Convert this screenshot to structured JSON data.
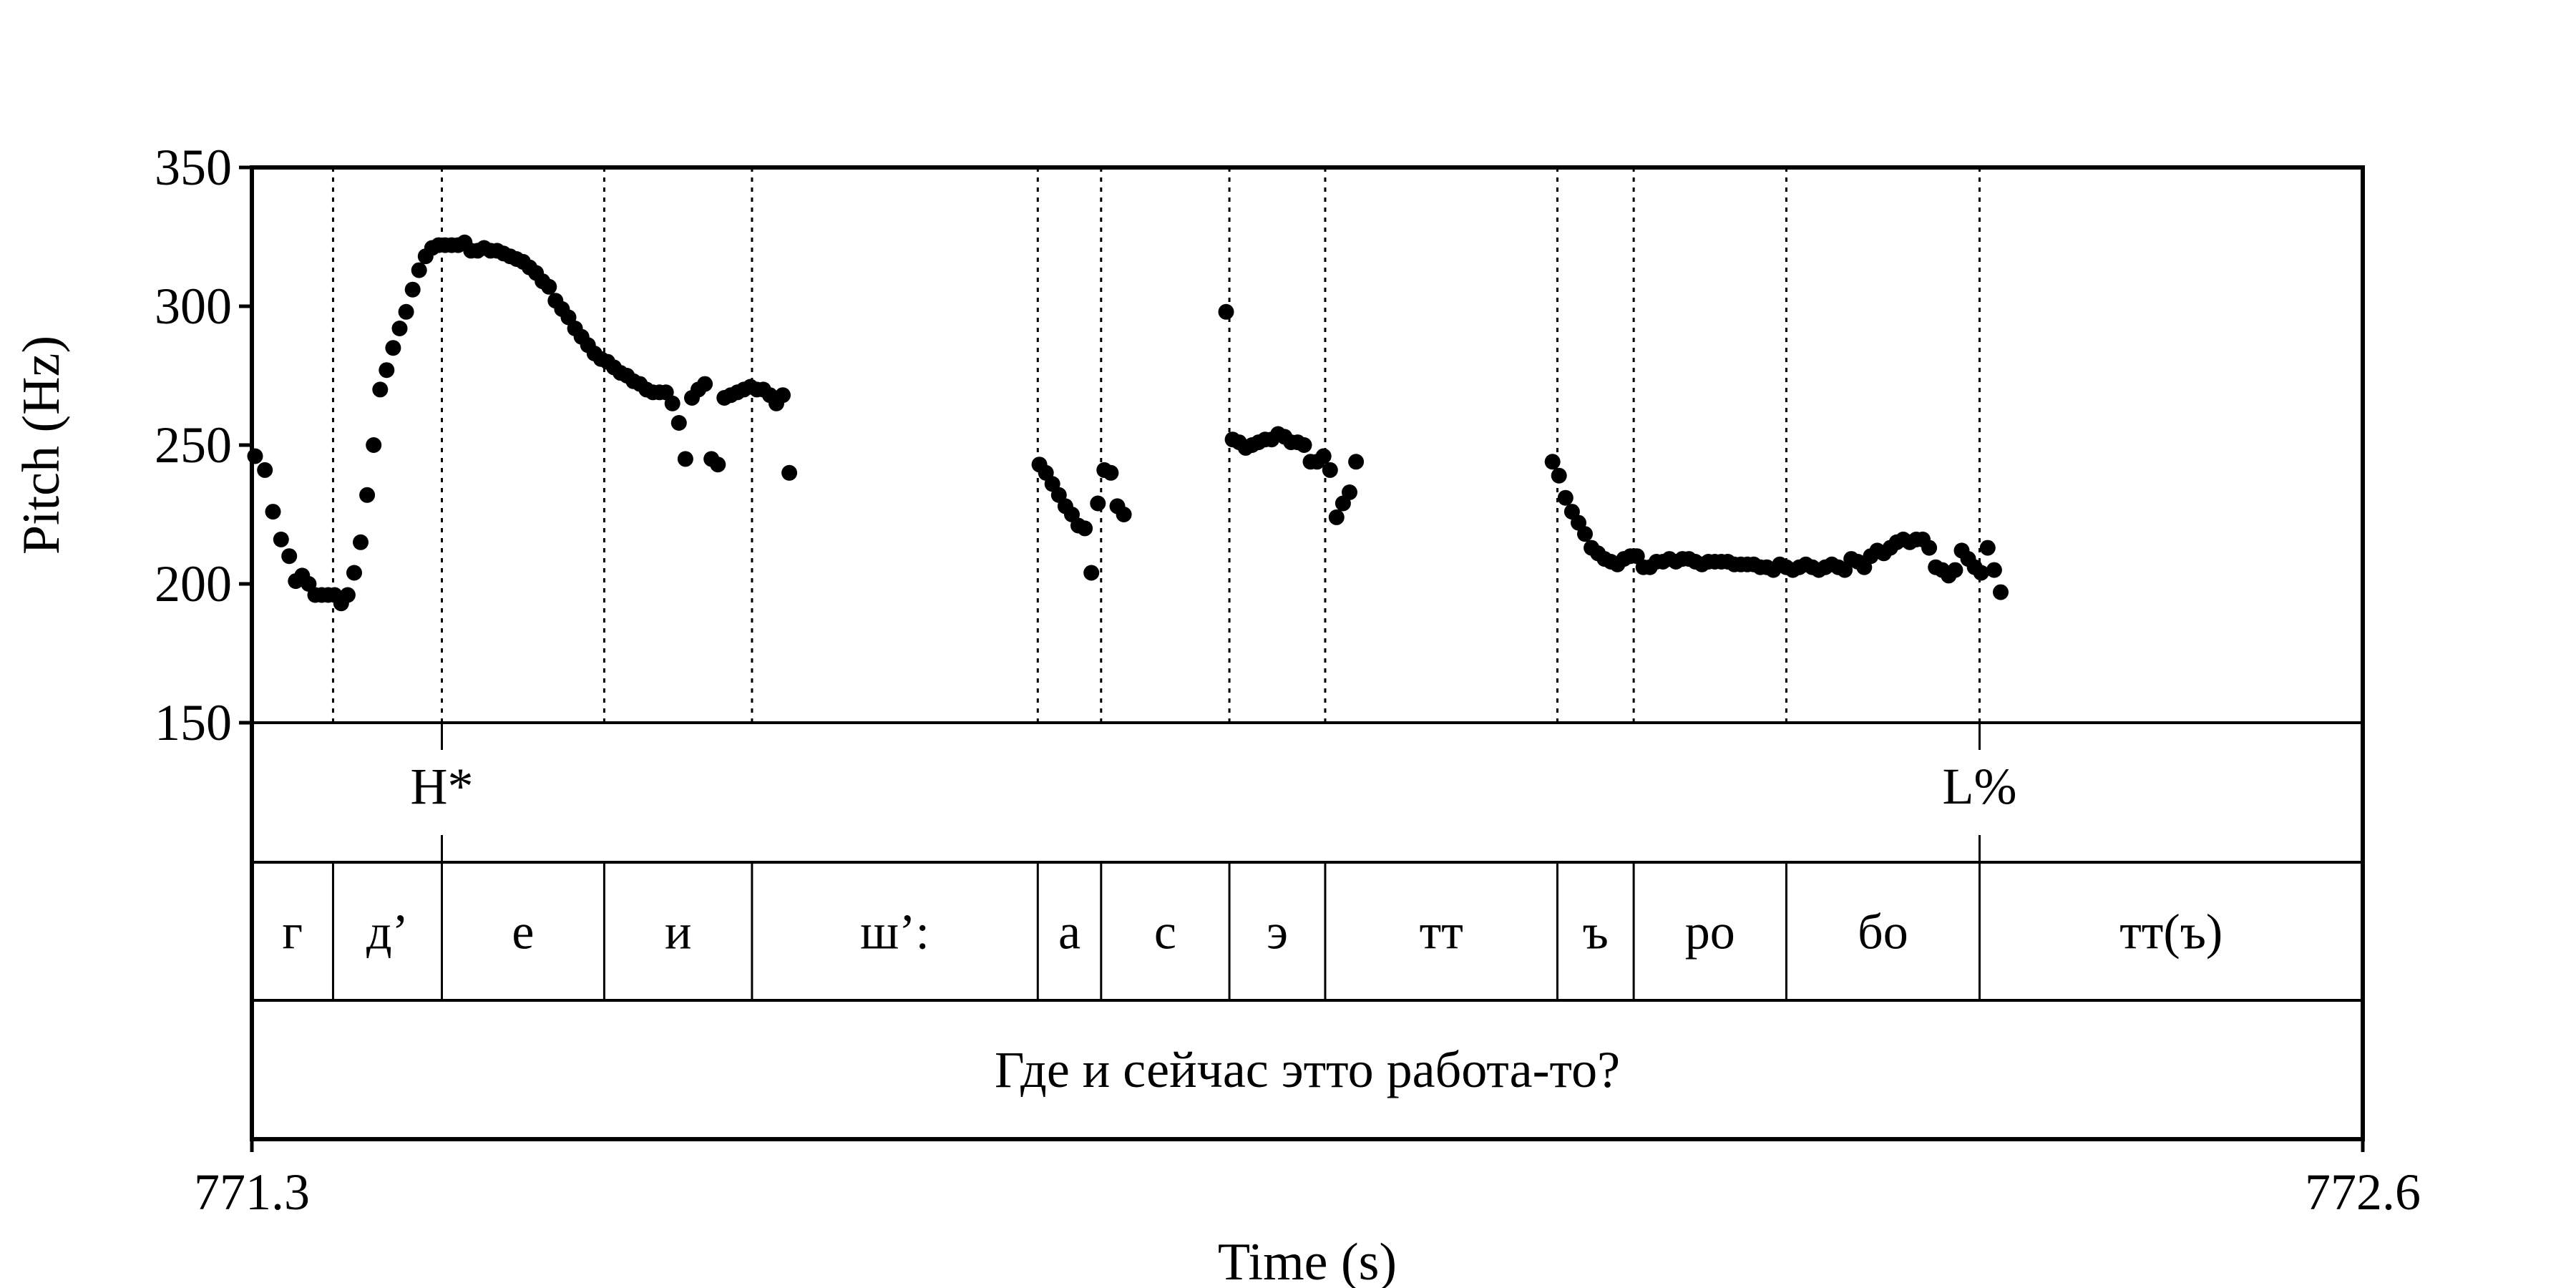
{
  "chart_data": {
    "type": "scatter",
    "title": "",
    "xlabel": "Time (s)",
    "ylabel": "Pitch (Hz)",
    "xlim": [
      771.3,
      772.6
    ],
    "ylim": [
      150,
      350
    ],
    "xtick_labels": [
      "771.3",
      "772.6"
    ],
    "ytick_labels": [
      "150",
      "200",
      "250",
      "300",
      "350"
    ],
    "yticks": [
      150,
      200,
      250,
      300,
      350
    ],
    "grid": false,
    "point_color": "#000000",
    "series": [
      {
        "values": [
          [
            771.302,
            246
          ],
          [
            771.308,
            241
          ],
          [
            771.313,
            226
          ],
          [
            771.318,
            216
          ],
          [
            771.323,
            210
          ],
          [
            771.327,
            201
          ],
          [
            771.331,
            203
          ],
          [
            771.335,
            200
          ],
          [
            771.339,
            196
          ],
          [
            771.343,
            196
          ],
          [
            771.347,
            196
          ],
          [
            771.351,
            196
          ],
          [
            771.355,
            193
          ],
          [
            771.359,
            196
          ],
          [
            771.363,
            204
          ],
          [
            771.367,
            215
          ],
          [
            771.371,
            232
          ],
          [
            771.375,
            250
          ],
          [
            771.379,
            270
          ],
          [
            771.383,
            277
          ],
          [
            771.387,
            285
          ],
          [
            771.391,
            292
          ],
          [
            771.395,
            298
          ],
          [
            771.399,
            306
          ],
          [
            771.403,
            313
          ],
          [
            771.407,
            318
          ],
          [
            771.411,
            321
          ],
          [
            771.415,
            322
          ],
          [
            771.419,
            322
          ],
          [
            771.423,
            322
          ],
          [
            771.427,
            322
          ],
          [
            771.431,
            323
          ],
          [
            771.435,
            320
          ],
          [
            771.439,
            320
          ],
          [
            771.443,
            321
          ],
          [
            771.447,
            320
          ],
          [
            771.451,
            320
          ],
          [
            771.455,
            319
          ],
          [
            771.459,
            318
          ],
          [
            771.463,
            317
          ],
          [
            771.467,
            316
          ],
          [
            771.471,
            314
          ],
          [
            771.475,
            312
          ],
          [
            771.479,
            309
          ],
          [
            771.483,
            307
          ],
          [
            771.487,
            302
          ],
          [
            771.491,
            299
          ],
          [
            771.495,
            296
          ],
          [
            771.499,
            292
          ],
          [
            771.503,
            289
          ],
          [
            771.507,
            286
          ],
          [
            771.511,
            283
          ],
          [
            771.515,
            281
          ],
          [
            771.519,
            280
          ],
          [
            771.523,
            278
          ],
          [
            771.527,
            276
          ],
          [
            771.531,
            275
          ],
          [
            771.535,
            273
          ],
          [
            771.539,
            272
          ],
          [
            771.543,
            270
          ],
          [
            771.547,
            269
          ],
          [
            771.551,
            269
          ],
          [
            771.555,
            269
          ],
          [
            771.559,
            265
          ],
          [
            771.563,
            258
          ],
          [
            771.567,
            245
          ],
          [
            771.571,
            267
          ],
          [
            771.575,
            270
          ],
          [
            771.579,
            272
          ],
          [
            771.583,
            245
          ],
          [
            771.587,
            243
          ],
          [
            771.591,
            267
          ],
          [
            771.595,
            268
          ],
          [
            771.599,
            269
          ],
          [
            771.603,
            270
          ],
          [
            771.607,
            271
          ],
          [
            771.611,
            270
          ],
          [
            771.615,
            270
          ],
          [
            771.619,
            268
          ],
          [
            771.623,
            265
          ],
          [
            771.627,
            268
          ],
          [
            771.631,
            240
          ],
          [
            771.785,
            243
          ],
          [
            771.789,
            240
          ],
          [
            771.793,
            236
          ],
          [
            771.797,
            232
          ],
          [
            771.801,
            228
          ],
          [
            771.805,
            225
          ],
          [
            771.809,
            221
          ],
          [
            771.813,
            220
          ],
          [
            771.817,
            204
          ],
          [
            771.821,
            229
          ],
          [
            771.825,
            241
          ],
          [
            771.829,
            240
          ],
          [
            771.833,
            228
          ],
          [
            771.837,
            225
          ],
          [
            771.9,
            298
          ],
          [
            771.904,
            252
          ],
          [
            771.908,
            251
          ],
          [
            771.912,
            249
          ],
          [
            771.916,
            250
          ],
          [
            771.92,
            251
          ],
          [
            771.924,
            252
          ],
          [
            771.928,
            252
          ],
          [
            771.932,
            254
          ],
          [
            771.936,
            253
          ],
          [
            771.94,
            251
          ],
          [
            771.944,
            251
          ],
          [
            771.948,
            250
          ],
          [
            771.952,
            244
          ],
          [
            771.956,
            244
          ],
          [
            771.96,
            246
          ],
          [
            771.964,
            241
          ],
          [
            771.968,
            224
          ],
          [
            771.972,
            229
          ],
          [
            771.976,
            233
          ],
          [
            771.98,
            244
          ],
          [
            772.101,
            244
          ],
          [
            772.105,
            239
          ],
          [
            772.109,
            231
          ],
          [
            772.113,
            226
          ],
          [
            772.117,
            222
          ],
          [
            772.121,
            218
          ],
          [
            772.125,
            213
          ],
          [
            772.129,
            211
          ],
          [
            772.133,
            209
          ],
          [
            772.137,
            208
          ],
          [
            772.141,
            207
          ],
          [
            772.145,
            209
          ],
          [
            772.149,
            210
          ],
          [
            772.153,
            210
          ],
          [
            772.157,
            206
          ],
          [
            772.161,
            206
          ],
          [
            772.165,
            208
          ],
          [
            772.169,
            208
          ],
          [
            772.173,
            209
          ],
          [
            772.177,
            208
          ],
          [
            772.181,
            209
          ],
          [
            772.185,
            209
          ],
          [
            772.189,
            208
          ],
          [
            772.193,
            207
          ],
          [
            772.197,
            208
          ],
          [
            772.201,
            208
          ],
          [
            772.205,
            208
          ],
          [
            772.209,
            208
          ],
          [
            772.213,
            207
          ],
          [
            772.217,
            207
          ],
          [
            772.221,
            207
          ],
          [
            772.225,
            207
          ],
          [
            772.229,
            206
          ],
          [
            772.233,
            206
          ],
          [
            772.237,
            205
          ],
          [
            772.241,
            207
          ],
          [
            772.245,
            206
          ],
          [
            772.249,
            205
          ],
          [
            772.253,
            206
          ],
          [
            772.257,
            207
          ],
          [
            772.261,
            206
          ],
          [
            772.265,
            205
          ],
          [
            772.269,
            206
          ],
          [
            772.273,
            207
          ],
          [
            772.277,
            206
          ],
          [
            772.281,
            205
          ],
          [
            772.285,
            209
          ],
          [
            772.289,
            208
          ],
          [
            772.293,
            206
          ],
          [
            772.297,
            210
          ],
          [
            772.301,
            212
          ],
          [
            772.305,
            211
          ],
          [
            772.309,
            213
          ],
          [
            772.313,
            215
          ],
          [
            772.317,
            216
          ],
          [
            772.321,
            215
          ],
          [
            772.325,
            216
          ],
          [
            772.329,
            216
          ],
          [
            772.333,
            213
          ],
          [
            772.337,
            206
          ],
          [
            772.341,
            205
          ],
          [
            772.345,
            203
          ],
          [
            772.349,
            205
          ],
          [
            772.353,
            212
          ],
          [
            772.357,
            209
          ],
          [
            772.361,
            206
          ],
          [
            772.365,
            204
          ],
          [
            772.369,
            213
          ],
          [
            772.373,
            205
          ],
          [
            772.377,
            197
          ]
        ]
      }
    ],
    "dotted_boundaries": [
      771.35,
      771.417,
      771.517,
      771.608,
      771.784,
      771.823,
      771.902,
      771.961,
      772.104,
      772.151,
      772.245,
      772.364
    ],
    "tones": [
      {
        "time": 771.417,
        "label": "H*"
      },
      {
        "time": 772.364,
        "label": "L%"
      }
    ],
    "segments": [
      {
        "start": 771.3,
        "end": 771.35,
        "label": "г"
      },
      {
        "start": 771.35,
        "end": 771.417,
        "label": "д’"
      },
      {
        "start": 771.417,
        "end": 771.517,
        "label": "е"
      },
      {
        "start": 771.517,
        "end": 771.608,
        "label": "и"
      },
      {
        "start": 771.608,
        "end": 771.784,
        "label": "ш’:"
      },
      {
        "start": 771.784,
        "end": 771.823,
        "label": "а"
      },
      {
        "start": 771.823,
        "end": 771.902,
        "label": "с"
      },
      {
        "start": 771.902,
        "end": 771.961,
        "label": "э"
      },
      {
        "start": 771.961,
        "end": 772.104,
        "label": "тт"
      },
      {
        "start": 772.104,
        "end": 772.151,
        "label": "ъ"
      },
      {
        "start": 772.151,
        "end": 772.245,
        "label": "ро"
      },
      {
        "start": 772.245,
        "end": 772.364,
        "label": "бо"
      },
      {
        "start": 772.364,
        "end": 772.6,
        "label": "тт(ъ)"
      }
    ],
    "utterance": "Где и сейчас этто работа-то?"
  }
}
